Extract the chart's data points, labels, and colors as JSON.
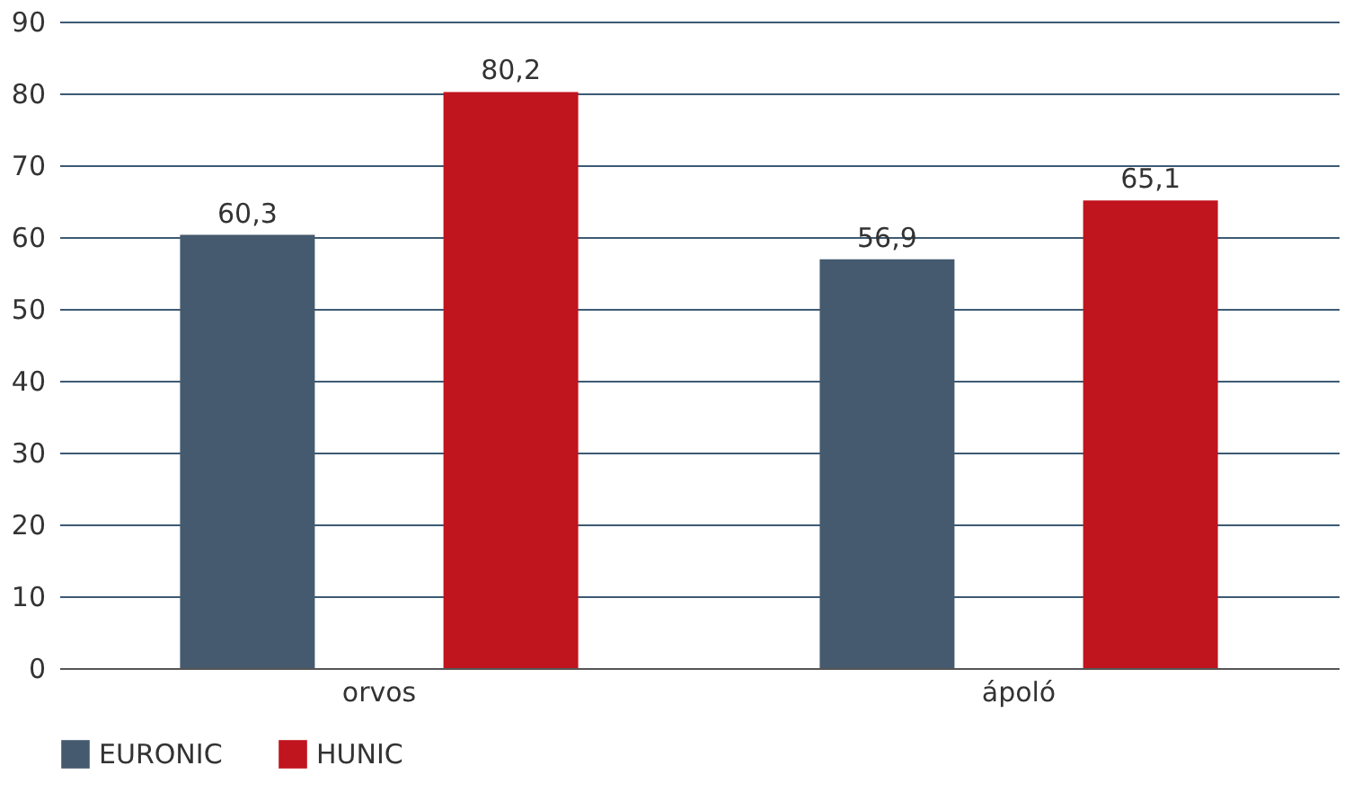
{
  "chart_data": {
    "type": "bar",
    "categories": [
      "orvos",
      "ápoló"
    ],
    "series": [
      {
        "name": "EURONIC",
        "color": "#455a6e",
        "values": [
          60.3,
          56.9
        ],
        "value_labels": [
          "60,3",
          "56,9"
        ]
      },
      {
        "name": "HUNIC",
        "color": "#c0141e",
        "values": [
          80.2,
          65.1
        ],
        "value_labels": [
          "80,2",
          "65,1"
        ]
      }
    ],
    "ylim": [
      0,
      90
    ],
    "yticks": [
      0,
      10,
      20,
      30,
      40,
      50,
      60,
      70,
      80,
      90
    ],
    "grid": "y",
    "legend": "bottom"
  }
}
